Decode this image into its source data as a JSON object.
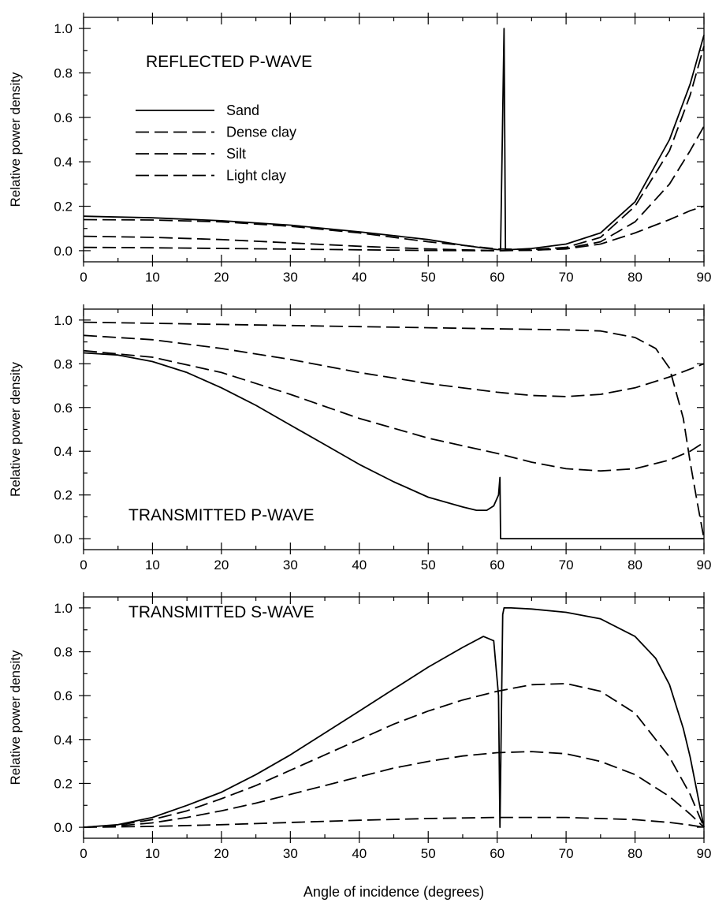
{
  "chart_data": [
    {
      "type": "line",
      "title": "REFLECTED P-WAVE",
      "xlabel": "",
      "ylabel": "Relative power density",
      "xlim": [
        0,
        90
      ],
      "ylim": [
        -0.05,
        1.05
      ],
      "xticks": [
        0,
        10,
        20,
        30,
        40,
        50,
        60,
        70,
        80,
        90
      ],
      "yticks": [
        0.0,
        0.2,
        0.4,
        0.6,
        0.8,
        1.0
      ],
      "grid": false,
      "legend_position": "upper-left",
      "series": [
        {
          "name": "Sand",
          "style": "solid",
          "x": [
            0,
            10,
            20,
            30,
            40,
            50,
            55,
            58,
            60,
            60.5,
            61,
            61.2,
            62,
            65,
            70,
            75,
            80,
            85,
            88,
            90
          ],
          "y": [
            0.155,
            0.148,
            0.135,
            0.115,
            0.085,
            0.05,
            0.025,
            0.012,
            0.005,
            0.005,
            1.0,
            0.005,
            0.005,
            0.01,
            0.03,
            0.08,
            0.22,
            0.5,
            0.75,
            0.97
          ]
        },
        {
          "name": "Dense clay",
          "style": "dashed",
          "x": [
            0,
            10,
            20,
            30,
            40,
            50,
            60,
            65,
            70,
            75,
            80,
            85,
            88,
            90
          ],
          "y": [
            0.14,
            0.138,
            0.13,
            0.11,
            0.08,
            0.04,
            0.008,
            0.005,
            0.015,
            0.06,
            0.2,
            0.45,
            0.7,
            0.92
          ]
        },
        {
          "name": "Silt",
          "style": "dashed",
          "x": [
            0,
            10,
            20,
            30,
            40,
            50,
            60,
            65,
            70,
            75,
            80,
            85,
            88,
            90
          ],
          "y": [
            0.065,
            0.06,
            0.05,
            0.035,
            0.02,
            0.008,
            0.0,
            0.002,
            0.01,
            0.04,
            0.13,
            0.3,
            0.45,
            0.56
          ]
        },
        {
          "name": "Light clay",
          "style": "dashed",
          "x": [
            0,
            10,
            20,
            30,
            40,
            50,
            60,
            65,
            70,
            75,
            80,
            85,
            88,
            90
          ],
          "y": [
            0.015,
            0.013,
            0.01,
            0.007,
            0.004,
            0.001,
            0.0,
            0.002,
            0.008,
            0.03,
            0.08,
            0.14,
            0.18,
            0.2
          ]
        }
      ]
    },
    {
      "type": "line",
      "title": "TRANSMITTED P-WAVE",
      "xlabel": "",
      "ylabel": "Relative power density",
      "xlim": [
        0,
        90
      ],
      "ylim": [
        -0.05,
        1.05
      ],
      "xticks": [
        0,
        10,
        20,
        30,
        40,
        50,
        60,
        70,
        80,
        90
      ],
      "yticks": [
        0.0,
        0.2,
        0.4,
        0.6,
        0.8,
        1.0
      ],
      "grid": false,
      "series": [
        {
          "style": "solid",
          "x": [
            0,
            5,
            10,
            15,
            20,
            25,
            30,
            35,
            40,
            45,
            50,
            55,
            57,
            58.5,
            59.5,
            60.2,
            60.4,
            60.5,
            60.6,
            70,
            80,
            90
          ],
          "y": [
            0.85,
            0.84,
            0.81,
            0.76,
            0.69,
            0.61,
            0.52,
            0.43,
            0.34,
            0.26,
            0.19,
            0.145,
            0.13,
            0.13,
            0.15,
            0.2,
            0.28,
            0.0,
            0.0,
            0.0,
            0.0,
            0.0
          ]
        },
        {
          "style": "dashed",
          "x": [
            0,
            10,
            20,
            30,
            40,
            50,
            60,
            70,
            75,
            80,
            83,
            85,
            87,
            88,
            89,
            90
          ],
          "y": [
            0.99,
            0.985,
            0.98,
            0.975,
            0.97,
            0.965,
            0.96,
            0.955,
            0.95,
            0.92,
            0.87,
            0.78,
            0.55,
            0.35,
            0.17,
            0.0
          ]
        },
        {
          "style": "dashed",
          "x": [
            0,
            10,
            20,
            30,
            40,
            50,
            60,
            65,
            70,
            75,
            80,
            85,
            90
          ],
          "y": [
            0.93,
            0.91,
            0.87,
            0.82,
            0.76,
            0.71,
            0.67,
            0.655,
            0.65,
            0.66,
            0.69,
            0.74,
            0.8
          ]
        },
        {
          "style": "dashed",
          "x": [
            0,
            10,
            20,
            30,
            40,
            50,
            60,
            65,
            70,
            75,
            80,
            85,
            88,
            90
          ],
          "y": [
            0.86,
            0.83,
            0.76,
            0.66,
            0.55,
            0.46,
            0.39,
            0.35,
            0.32,
            0.31,
            0.32,
            0.36,
            0.4,
            0.44
          ]
        }
      ]
    },
    {
      "type": "line",
      "title": "TRANSMITTED S-WAVE",
      "xlabel": "Angle of incidence (degrees)",
      "ylabel": "Relative power density",
      "xlim": [
        0,
        90
      ],
      "ylim": [
        -0.05,
        1.05
      ],
      "xticks": [
        0,
        10,
        20,
        30,
        40,
        50,
        60,
        70,
        80,
        90
      ],
      "yticks": [
        0.0,
        0.2,
        0.4,
        0.6,
        0.8,
        1.0
      ],
      "grid": false,
      "series": [
        {
          "style": "solid",
          "x": [
            0,
            5,
            10,
            15,
            20,
            25,
            30,
            35,
            40,
            45,
            50,
            55,
            58,
            59.5,
            60.2,
            60.4,
            60.8,
            61,
            62,
            65,
            70,
            75,
            80,
            83,
            85,
            87,
            88,
            89,
            90
          ],
          "y": [
            0.0,
            0.012,
            0.045,
            0.1,
            0.16,
            0.24,
            0.33,
            0.43,
            0.53,
            0.63,
            0.73,
            0.82,
            0.87,
            0.85,
            0.6,
            0.0,
            0.97,
            1.0,
            1.0,
            0.995,
            0.98,
            0.95,
            0.87,
            0.77,
            0.65,
            0.45,
            0.32,
            0.16,
            0.0
          ]
        },
        {
          "style": "dashed",
          "x": [
            0,
            5,
            10,
            15,
            20,
            25,
            30,
            35,
            40,
            45,
            50,
            55,
            60,
            65,
            70,
            75,
            80,
            85,
            88,
            90
          ],
          "y": [
            0.0,
            0.01,
            0.035,
            0.075,
            0.13,
            0.19,
            0.26,
            0.33,
            0.4,
            0.47,
            0.53,
            0.58,
            0.62,
            0.65,
            0.655,
            0.62,
            0.52,
            0.32,
            0.15,
            0.0
          ]
        },
        {
          "style": "dashed",
          "x": [
            0,
            5,
            10,
            15,
            20,
            25,
            30,
            35,
            40,
            45,
            50,
            55,
            60,
            65,
            70,
            75,
            80,
            85,
            88,
            90
          ],
          "y": [
            0.0,
            0.006,
            0.02,
            0.045,
            0.075,
            0.11,
            0.15,
            0.19,
            0.23,
            0.27,
            0.3,
            0.325,
            0.34,
            0.345,
            0.335,
            0.3,
            0.24,
            0.14,
            0.06,
            0.0
          ]
        },
        {
          "style": "dashed",
          "x": [
            0,
            10,
            20,
            30,
            40,
            50,
            60,
            70,
            80,
            85,
            88,
            90
          ],
          "y": [
            0.0,
            0.004,
            0.012,
            0.022,
            0.032,
            0.04,
            0.045,
            0.045,
            0.035,
            0.022,
            0.01,
            0.0
          ]
        }
      ]
    }
  ]
}
